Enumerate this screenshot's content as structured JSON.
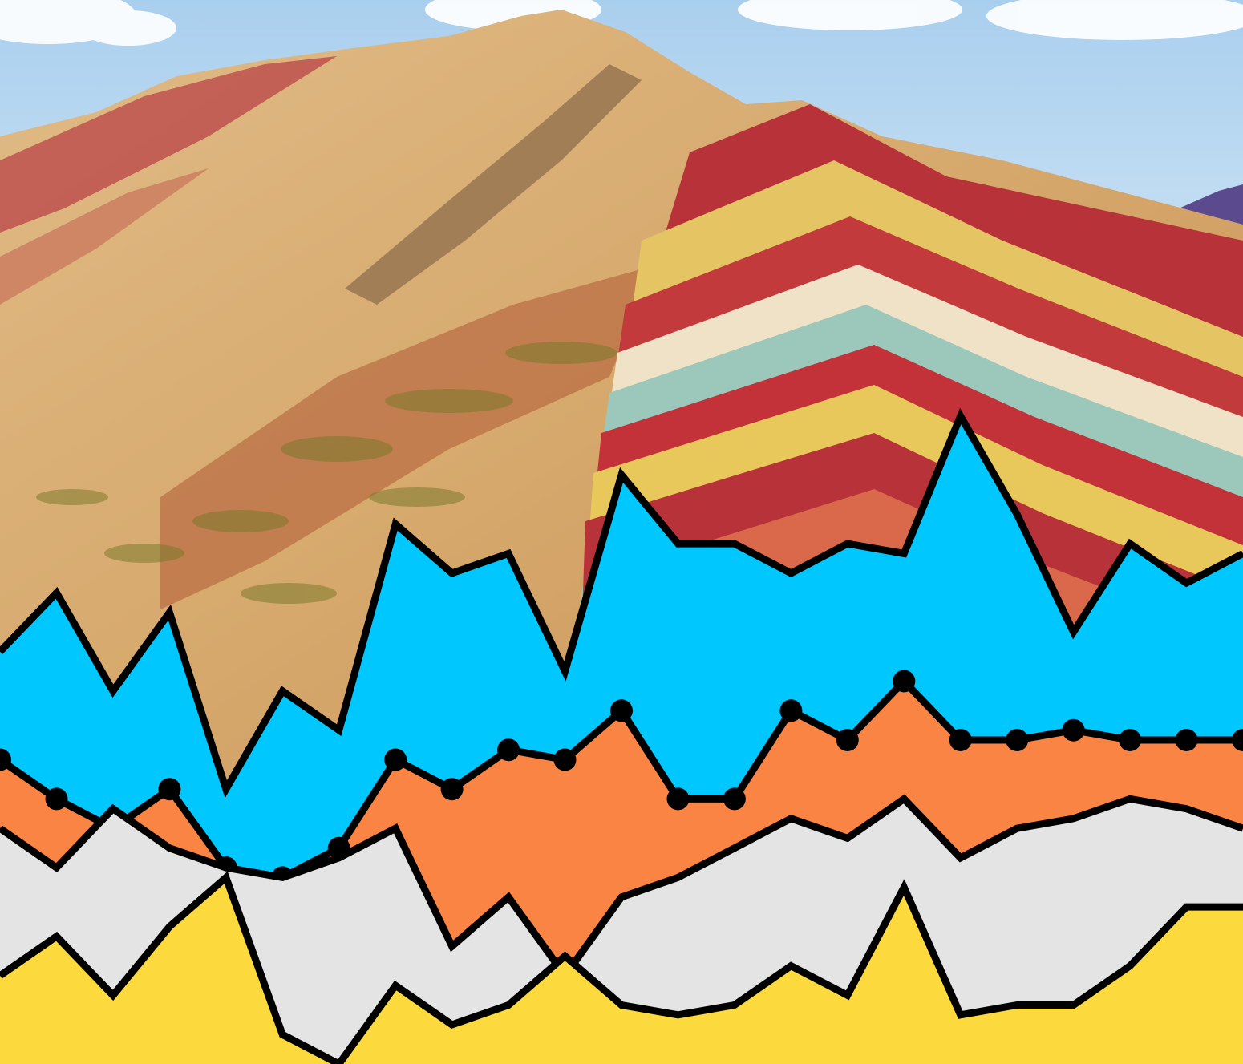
{
  "image": {
    "subject": "rainbow-mountain-with-area-chart-overlay"
  },
  "colors": {
    "sky_top": "#b9d8f0",
    "sky_bottom": "#eef6fb",
    "cloud": "#ffffff",
    "far_mountain": "#5a4a8c",
    "mountain_sand": "#d9b07a",
    "mountain_tan": "#c99a5e",
    "mountain_red": "#b8323a",
    "mountain_rust": "#a8482c",
    "mountain_yellow": "#e7c65a",
    "mountain_teal": "#9cc7b8",
    "mountain_white": "#f1e6cf",
    "band_blue": "#00c8ff",
    "band_orange": "#f98444",
    "band_gray": "#e4e4e4",
    "band_yellow": "#fcd93d",
    "stroke": "#000000"
  },
  "chart_data": {
    "type": "area",
    "series": [
      {
        "values": [
          42,
          48,
          38,
          46,
          28,
          38,
          34,
          55,
          50,
          52,
          40,
          60,
          53,
          53,
          50,
          53,
          52,
          66,
          56,
          44,
          53,
          49,
          52
        ]
      },
      {
        "values": [
          31,
          27,
          24,
          28,
          20,
          19,
          22,
          31,
          28,
          32,
          31,
          36,
          27,
          27,
          36,
          33,
          39,
          33,
          33,
          34,
          33,
          33,
          33
        ]
      },
      {
        "values": [
          24,
          20,
          26,
          22,
          20,
          19,
          21,
          24,
          12,
          17,
          9,
          17,
          19,
          22,
          25,
          23,
          27,
          21,
          24,
          25,
          27,
          26,
          24
        ]
      },
      {
        "values": [
          9,
          13,
          7,
          14,
          19,
          3,
          0,
          8,
          4,
          6,
          11,
          6,
          5,
          6,
          10,
          7,
          18,
          5,
          6,
          6,
          10,
          16,
          16
        ]
      }
    ]
  }
}
